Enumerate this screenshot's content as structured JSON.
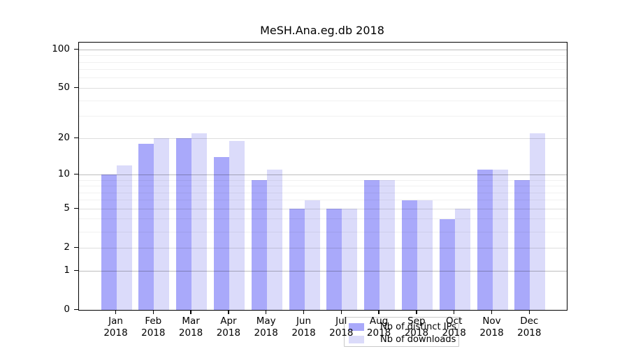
{
  "chart_data": {
    "type": "bar",
    "title": "MeSH.Ana.eg.db 2018",
    "year": "2018",
    "categories": [
      "Jan",
      "Feb",
      "Mar",
      "Apr",
      "May",
      "Jun",
      "Jul",
      "Aug",
      "Sep",
      "Oct",
      "Nov",
      "Dec"
    ],
    "series": [
      {
        "name": "Nb of distinct IPs",
        "key": "distinct-ips",
        "color": "#a9a9fa",
        "values": [
          10,
          18,
          20,
          14,
          9,
          5,
          5,
          9,
          6,
          4,
          11,
          9
        ]
      },
      {
        "name": "Nb of downloads",
        "key": "downloads",
        "color": "#dbdbfa",
        "values": [
          12,
          20,
          22,
          19,
          11,
          6,
          5,
          9,
          6,
          5,
          11,
          22
        ]
      }
    ],
    "xlabel": "",
    "ylabel": "",
    "y_axis": {
      "scale": "log1p",
      "labeled_ticks": [
        0,
        1,
        2,
        5,
        10,
        20,
        50,
        100
      ],
      "major_grid_values": [
        1,
        10,
        100
      ],
      "mid_grid_values": [
        2,
        5,
        20,
        50
      ],
      "minor_grid_values": [
        3,
        4,
        6,
        7,
        8,
        9,
        30,
        40,
        60,
        70,
        80,
        90
      ],
      "ylim": [
        0,
        100
      ]
    },
    "grid": true,
    "legend_position": "inside-bottom-center"
  },
  "colors": {
    "bar_ips": "#a9a9fa",
    "bar_downloads": "#dbdbfa",
    "grid_major": "rgba(0,0,0,0.26)",
    "grid_mid": "rgba(0,0,0,0.13)",
    "grid_minor": "rgba(0,0,0,0.055)",
    "axis": "#000000",
    "legend_border": "#c9c9c9"
  }
}
